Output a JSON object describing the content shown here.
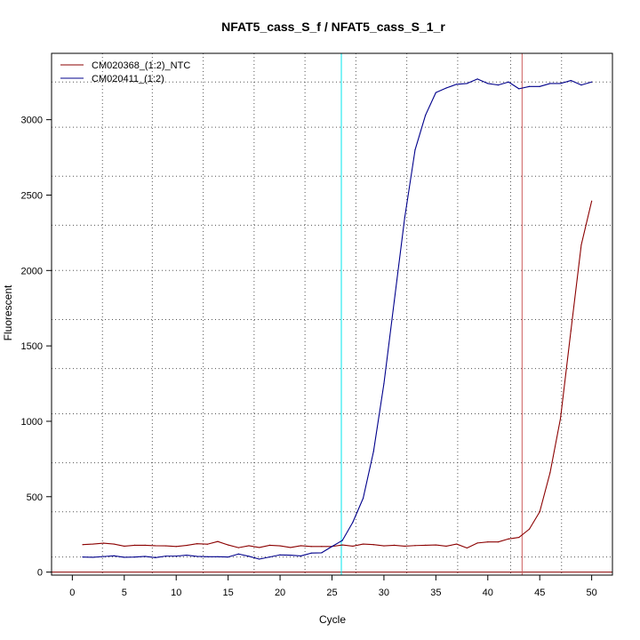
{
  "chart_data": {
    "type": "line",
    "title": "NFAT5_cass_S_f / NFAT5_cass_S_1_r",
    "xlabel": "Cycle",
    "ylabel": "Fluorescent",
    "xlim": [
      -2,
      52
    ],
    "ylim": [
      -20,
      3440
    ],
    "x_ticks": [
      0,
      5,
      10,
      15,
      20,
      25,
      30,
      35,
      40,
      45,
      50
    ],
    "y_ticks": [
      0,
      500,
      1000,
      1500,
      2000,
      2500,
      3000
    ],
    "grid": true,
    "grid_x": [
      2.9,
      7.7,
      12.6,
      17.5,
      22.4,
      27.3,
      32.2,
      37.1,
      42.2,
      47.1
    ],
    "grid_y": [
      100,
      400,
      725,
      1050,
      1350,
      1675,
      2000,
      2300,
      2625,
      2950,
      3250
    ],
    "threshold_y": 0,
    "threshold_color": "#8b0000",
    "vlines": [
      {
        "x": 25.9,
        "color": "#00e5ee"
      },
      {
        "x": 43.3,
        "color": "#cd5c5c"
      }
    ],
    "legend_position": "top-left",
    "x": [
      1,
      2,
      3,
      4,
      5,
      6,
      7,
      8,
      9,
      10,
      11,
      12,
      13,
      14,
      15,
      16,
      17,
      18,
      19,
      20,
      21,
      22,
      23,
      24,
      25,
      26,
      27,
      28,
      29,
      30,
      31,
      32,
      33,
      34,
      35,
      36,
      37,
      38,
      39,
      40,
      41,
      42,
      43,
      44,
      45,
      46,
      47,
      48,
      49,
      50
    ],
    "series": [
      {
        "name": "CM020368_(1:2)_NTC",
        "color": "#8b0000",
        "values": [
          182,
          186,
          192,
          186,
          172,
          178,
          178,
          175,
          174,
          170,
          177,
          188,
          185,
          203,
          180,
          162,
          175,
          163,
          178,
          174,
          163,
          175,
          170,
          170,
          170,
          180,
          172,
          186,
          182,
          174,
          178,
          172,
          176,
          178,
          180,
          172,
          186,
          160,
          193,
          200,
          200,
          220,
          230,
          285,
          400,
          660,
          1020,
          1600,
          2170,
          2460
        ]
      },
      {
        "name": "CM020411_(1:2)",
        "color": "#00008b",
        "values": [
          100,
          98,
          103,
          108,
          98,
          100,
          104,
          96,
          106,
          106,
          112,
          104,
          102,
          102,
          100,
          120,
          105,
          86,
          100,
          114,
          112,
          107,
          126,
          128,
          170,
          210,
          330,
          490,
          800,
          1250,
          1800,
          2350,
          2800,
          3030,
          3180,
          3210,
          3235,
          3240,
          3270,
          3240,
          3230,
          3250,
          3205,
          3220,
          3220,
          3240,
          3240,
          3260,
          3230,
          3250
        ]
      }
    ]
  }
}
